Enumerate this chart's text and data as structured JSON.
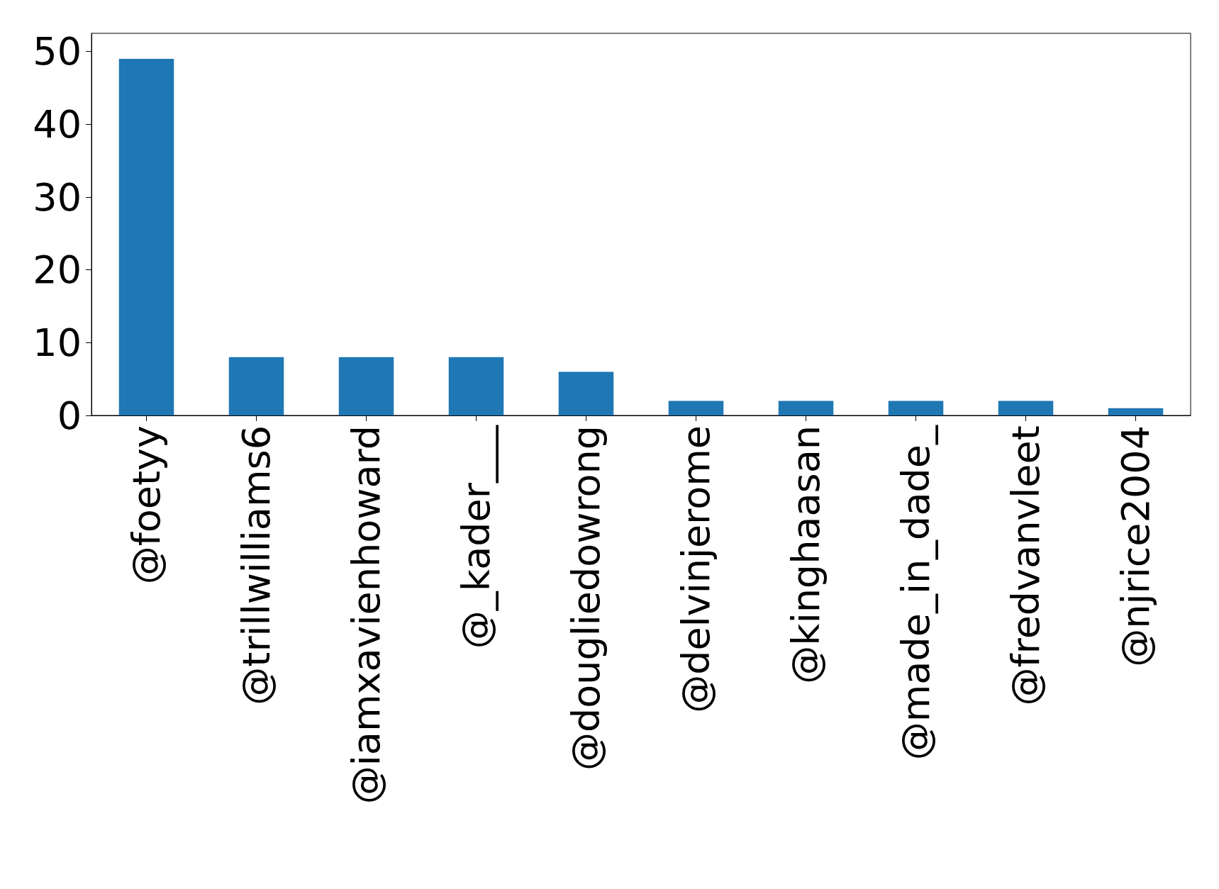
{
  "chart_data": {
    "type": "bar",
    "categories": [
      "@foetyy",
      "@trillwilliams6",
      "@iamxavienhoward",
      "@_kader___",
      "@dougliedowrong",
      "@delvinjerome",
      "@kinghaasan",
      "@made_in_dade_",
      "@fredvanvleet",
      "@njrice2004"
    ],
    "values": [
      49,
      8,
      8,
      8,
      6,
      2,
      2,
      2,
      2,
      1
    ],
    "color": "#1f77b4",
    "ylim": [
      0,
      52.5
    ],
    "yticks": [
      0,
      10,
      20,
      30,
      40,
      50
    ],
    "grid": false
  }
}
